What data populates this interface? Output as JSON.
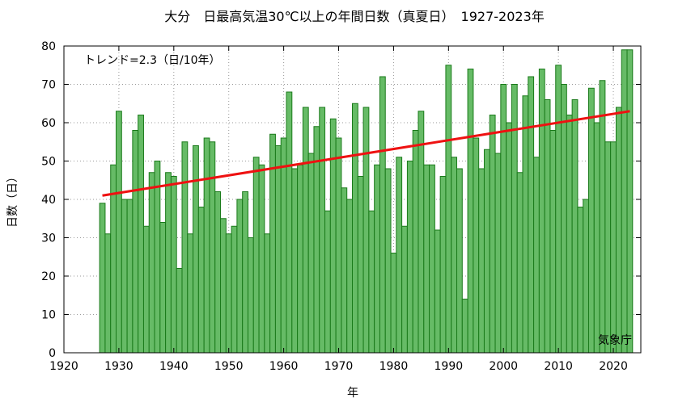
{
  "chart_data": {
    "type": "bar",
    "title": "大分　日最高気温30℃以上の年間日数（真夏日）　1927-2023年",
    "xlabel": "年",
    "ylabel": "日数（日）",
    "trend_label": "トレンド=2.3（日/10年）",
    "source": "気象庁",
    "xlim": [
      1920,
      2025
    ],
    "ylim": [
      0,
      80
    ],
    "xticks": [
      1920,
      1930,
      1940,
      1950,
      1960,
      1970,
      1980,
      1990,
      2000,
      2010,
      2020
    ],
    "yticks": [
      0,
      10,
      20,
      30,
      40,
      50,
      60,
      70,
      80
    ],
    "bar_fill": "#66bb66",
    "bar_edge": "#1a7a1a",
    "trend_color": "#ee1111",
    "grid": true,
    "x": [
      1927,
      1928,
      1929,
      1930,
      1931,
      1932,
      1933,
      1934,
      1935,
      1936,
      1937,
      1938,
      1939,
      1940,
      1941,
      1942,
      1943,
      1944,
      1945,
      1946,
      1947,
      1948,
      1949,
      1950,
      1951,
      1952,
      1953,
      1954,
      1955,
      1956,
      1957,
      1958,
      1959,
      1960,
      1961,
      1962,
      1963,
      1964,
      1965,
      1966,
      1967,
      1968,
      1969,
      1970,
      1971,
      1972,
      1973,
      1974,
      1975,
      1976,
      1977,
      1978,
      1979,
      1980,
      1981,
      1982,
      1983,
      1984,
      1985,
      1986,
      1987,
      1988,
      1989,
      1990,
      1991,
      1992,
      1993,
      1994,
      1995,
      1996,
      1997,
      1998,
      1999,
      2000,
      2001,
      2002,
      2003,
      2004,
      2005,
      2006,
      2007,
      2008,
      2009,
      2010,
      2011,
      2012,
      2013,
      2014,
      2015,
      2016,
      2017,
      2018,
      2019,
      2020,
      2021,
      2022,
      2023
    ],
    "values": [
      39,
      31,
      49,
      63,
      40,
      40,
      58,
      62,
      33,
      47,
      50,
      34,
      47,
      46,
      22,
      55,
      31,
      54,
      38,
      56,
      55,
      42,
      35,
      31,
      33,
      40,
      42,
      30,
      51,
      49,
      31,
      57,
      54,
      56,
      68,
      48,
      49,
      64,
      52,
      59,
      64,
      37,
      61,
      56,
      43,
      40,
      65,
      46,
      64,
      37,
      49,
      72,
      48,
      26,
      51,
      33,
      50,
      58,
      63,
      49,
      49,
      32,
      46,
      75,
      51,
      48,
      14,
      74,
      56,
      48,
      53,
      62,
      52,
      70,
      60,
      70,
      47,
      67,
      72,
      51,
      74,
      66,
      58,
      75,
      70,
      62,
      66,
      38,
      40,
      69,
      60,
      71,
      55,
      55,
      64,
      79,
      79
    ],
    "trend": {
      "x": [
        1927,
        2023
      ],
      "y": [
        41,
        63
      ]
    }
  }
}
